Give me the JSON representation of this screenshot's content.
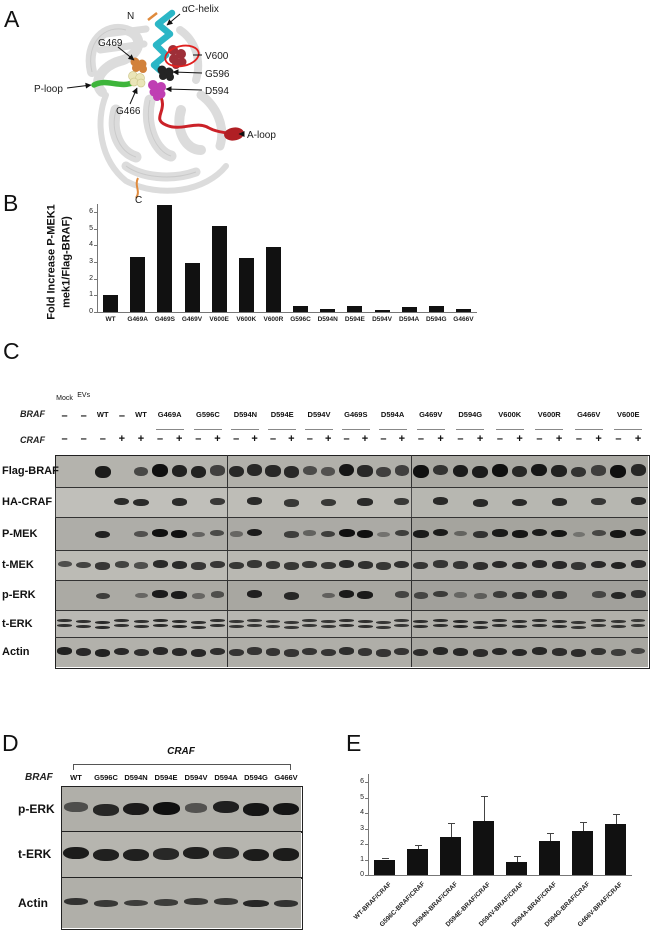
{
  "panelA": {
    "label": "A",
    "labels": {
      "n": "N",
      "c": "C",
      "alpha_c_helix": "αC-helix",
      "g469": "G469",
      "v600": "V600",
      "g596": "G596",
      "d594": "D594",
      "p_loop": "P-loop",
      "g466": "G466",
      "a_loop": "A-loop"
    },
    "colors": {
      "ribbon": "#dcdcdc",
      "alpha_c_helix": "#2bb6c6",
      "p_loop": "#3eb53b",
      "a_loop": "#cb2128",
      "v600_spheres": "#9e2f38",
      "g596_spheres": "#242424",
      "d594_spheres": "#bf3fb3",
      "g469_spheres": "#d2813b",
      "g466_spheres": "#eae5b8",
      "v600_outline": "#e0201f",
      "terminus_strand": "#e08a3c"
    }
  },
  "panelB": {
    "label": "B"
  },
  "panelC": {
    "label": "C",
    "braf_label": "BRAF",
    "craf_label": "CRAF",
    "mock_label": "Mock",
    "evs_label": "EVs",
    "single_lanes": [
      {
        "lane": 0,
        "text": "–"
      },
      {
        "lane": 1,
        "text": "–"
      },
      {
        "lane": 2,
        "text": "WT"
      },
      {
        "lane": 3,
        "text": "–"
      },
      {
        "lane": 4,
        "text": "WT"
      }
    ],
    "groups": [
      "G469A",
      "G596C",
      "D594N",
      "D594E",
      "D594V",
      "G469S",
      "D594A",
      "G469V",
      "D594G",
      "V600K",
      "V600R",
      "G466V",
      "V600E"
    ],
    "craf_signs": [
      "–",
      "–",
      "–",
      "+",
      "+",
      "–",
      "+",
      "–",
      "+",
      "–",
      "+",
      "–",
      "+",
      "–",
      "+",
      "–",
      "+",
      "–",
      "+",
      "–",
      "+",
      "–",
      "+",
      "–",
      "+",
      "–",
      "+",
      "–",
      "+",
      "–",
      "+"
    ],
    "sections": [
      {
        "lanes": 9
      },
      {
        "lanes": 10
      },
      {
        "lanes": 12
      }
    ],
    "rows": [
      {
        "label": "Flag-BRAF",
        "bands": [
          0,
          0,
          0.9,
          0,
          0.55,
          1,
          0.85,
          0.85,
          0.6,
          0.8,
          0.8,
          0.8,
          0.8,
          0.5,
          0.45,
          0.95,
          0.8,
          0.6,
          0.6,
          1,
          0.7,
          0.9,
          0.9,
          1,
          0.8,
          0.95,
          0.85,
          0.7,
          0.6,
          1,
          0.8
        ]
      },
      {
        "label": "HA-CRAF",
        "bands": [
          0,
          0,
          0,
          0.8,
          0.8,
          0,
          0.8,
          0,
          0.7,
          0,
          0.8,
          0,
          0.7,
          0,
          0.7,
          0,
          0.8,
          0,
          0.7,
          0,
          0.8,
          0,
          0.8,
          0,
          0.8,
          0,
          0.8,
          0,
          0.7,
          0,
          0.8
        ]
      },
      {
        "label": "P-MEK",
        "bands": [
          0,
          0,
          0.85,
          0,
          0.45,
          1,
          1,
          0.3,
          0.5,
          0.25,
          0.9,
          0,
          0.6,
          0.3,
          0.6,
          1,
          1,
          0.15,
          0.6,
          0.9,
          0.9,
          0.25,
          0.7,
          0.9,
          0.95,
          0.9,
          0.95,
          0.1,
          0.5,
          0.95,
          0.9
        ]
      },
      {
        "label": "t-MEK",
        "bands": [
          0.5,
          0.6,
          0.7,
          0.6,
          0.5,
          0.8,
          0.8,
          0.7,
          0.7,
          0.7,
          0.7,
          0.7,
          0.7,
          0.7,
          0.7,
          0.8,
          0.75,
          0.7,
          0.75,
          0.7,
          0.7,
          0.7,
          0.75,
          0.8,
          0.8,
          0.8,
          0.8,
          0.7,
          0.8,
          0.85,
          0.8
        ]
      },
      {
        "label": "p-ERK",
        "bands": [
          0,
          0,
          0.6,
          0,
          0.25,
          0.9,
          0.9,
          0.25,
          0.45,
          0,
          0.85,
          0,
          0.8,
          0,
          0.3,
          0.9,
          0.9,
          0,
          0.55,
          0.5,
          0.6,
          0.2,
          0.3,
          0.6,
          0.7,
          0.7,
          0.7,
          0,
          0.5,
          0.8,
          0.7
        ]
      },
      {
        "label": "t-ERK",
        "double": true,
        "bands": [
          0.75,
          0.75,
          0.8,
          0.75,
          0.75,
          0.8,
          0.8,
          0.75,
          0.75,
          0.7,
          0.7,
          0.7,
          0.7,
          0.7,
          0.7,
          0.75,
          0.75,
          0.7,
          0.7,
          0.75,
          0.75,
          0.8,
          0.75,
          0.75,
          0.75,
          0.75,
          0.75,
          0.7,
          0.7,
          0.7,
          0.65
        ]
      },
      {
        "label": "Actin",
        "bands": [
          0.85,
          0.8,
          0.85,
          0.8,
          0.75,
          0.8,
          0.8,
          0.8,
          0.75,
          0.7,
          0.7,
          0.7,
          0.7,
          0.7,
          0.7,
          0.75,
          0.7,
          0.7,
          0.7,
          0.75,
          0.8,
          0.8,
          0.75,
          0.8,
          0.8,
          0.8,
          0.75,
          0.75,
          0.7,
          0.6,
          0.55
        ]
      }
    ]
  },
  "panelD": {
    "label": "D",
    "craf_label": "CRAF",
    "braf_label": "BRAF",
    "lanes": [
      "WT",
      "G596C",
      "D594N",
      "D594E",
      "D594V",
      "D594A",
      "D594G",
      "G466V"
    ],
    "rows": [
      {
        "label": "p-ERK",
        "bands": [
          0.45,
          0.8,
          0.9,
          1,
          0.4,
          0.85,
          0.95,
          0.95
        ]
      },
      {
        "label": "t-ERK",
        "bands": [
          0.9,
          0.85,
          0.85,
          0.8,
          0.85,
          0.8,
          0.9,
          0.9
        ]
      },
      {
        "label": "Actin",
        "bands": [
          0.7,
          0.65,
          0.6,
          0.6,
          0.65,
          0.65,
          0.8,
          0.7
        ]
      }
    ]
  },
  "panelE": {
    "label": "E"
  },
  "chart_data": [
    {
      "type": "bar",
      "panel": "B",
      "categories": [
        "WT",
        "G469A",
        "G469S",
        "G469V",
        "V600E",
        "V600K",
        "V600R",
        "G596C",
        "D594N",
        "D594E",
        "D594V",
        "D594A",
        "D594G",
        "G466V"
      ],
      "values": [
        1.05,
        3.3,
        6.4,
        2.95,
        5.15,
        3.25,
        3.9,
        0.35,
        0.2,
        0.35,
        0.15,
        0.3,
        0.35,
        0.2
      ],
      "title": "",
      "xlabel": "",
      "ylabel_line1": "Fold Increase P-MEK1",
      "ylabel_line2": "mek1/Flag-BRAF)",
      "ylim": [
        0,
        6.6
      ],
      "yticks": [
        0,
        1,
        2,
        3,
        4,
        5,
        6
      ],
      "grid": false,
      "legend": "none",
      "bar_color": "#111111"
    },
    {
      "type": "bar",
      "panel": "E",
      "categories": [
        "WT-BRAF/CRAF",
        "G596C-BRAF/CRAF",
        "D594N-BRAF/CRAF",
        "D594E-BRAF/CRAF",
        "D594V-BRAF/CRAF",
        "D594A-BRAF/CRAF",
        "D594G-BRAF/CRAF",
        "G466V-BRAF/CRAF"
      ],
      "values": [
        1.0,
        1.65,
        2.45,
        3.5,
        0.85,
        2.2,
        2.85,
        3.3
      ],
      "errors": [
        0.07,
        0.3,
        0.9,
        1.6,
        0.4,
        0.5,
        0.55,
        0.65
      ],
      "title": "",
      "xlabel": "",
      "ylabel": "",
      "ylim": [
        0,
        6
      ],
      "yticks": [
        0,
        1,
        2,
        3,
        4,
        5,
        6
      ],
      "grid": false,
      "legend": "none",
      "bar_color": "#111111"
    }
  ]
}
